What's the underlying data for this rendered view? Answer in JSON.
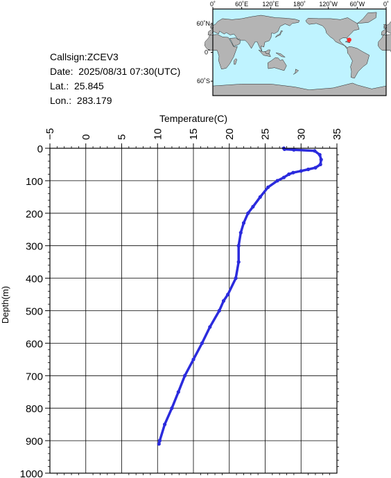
{
  "info": {
    "callsign": "Callsign:ZCEV3",
    "date": "Date:  2025/08/31 07:30(UTC)",
    "lat": "Lat.:  25.845",
    "lon": "Lon.:  283.179"
  },
  "map": {
    "lon_labels": [
      "0˚",
      "60˚E",
      "120˚E",
      "180˚",
      "120˚W",
      "60˚W",
      "0˚"
    ],
    "lat_labels": [
      "60˚N",
      "0˚",
      "60˚S"
    ],
    "ocean_color": "#bff3ff",
    "land_color": "#b4b4b4",
    "marker_color": "#ff2a2a",
    "marker_lat": 25.845,
    "marker_lon": 283.179
  },
  "chart_data": {
    "type": "line",
    "xlabel": "Temperature(C)",
    "ylabel": "Depth(m)",
    "xlim": [
      -5,
      35
    ],
    "ylim": [
      1000,
      0
    ],
    "x_ticks": [
      "-5",
      "0",
      "5",
      "10",
      "15",
      "20",
      "25",
      "30",
      "35"
    ],
    "y_ticks": [
      "0",
      "100",
      "200",
      "300",
      "400",
      "500",
      "600",
      "700",
      "800",
      "900",
      "1000"
    ],
    "grid": true,
    "line_color": "#2b2bdd",
    "series": [
      {
        "depth": [
          0,
          3,
          5,
          8,
          20,
          35,
          50,
          60,
          65,
          70,
          75,
          80,
          90,
          100,
          120,
          150,
          180,
          200,
          230,
          260,
          300,
          350,
          400,
          450,
          470,
          500,
          550,
          600,
          650,
          700,
          750,
          800,
          850,
          900,
          910
        ],
        "temperature": [
          27.6,
          27.7,
          29.0,
          31.9,
          32.6,
          32.8,
          32.7,
          32.0,
          31.0,
          30.0,
          28.9,
          28.3,
          27.6,
          26.7,
          25.4,
          24.3,
          23.3,
          22.6,
          22.0,
          21.6,
          21.3,
          21.3,
          20.9,
          19.8,
          19.2,
          18.6,
          17.3,
          16.2,
          15.0,
          13.8,
          12.9,
          12.0,
          11.0,
          10.3,
          10.2
        ]
      }
    ]
  }
}
